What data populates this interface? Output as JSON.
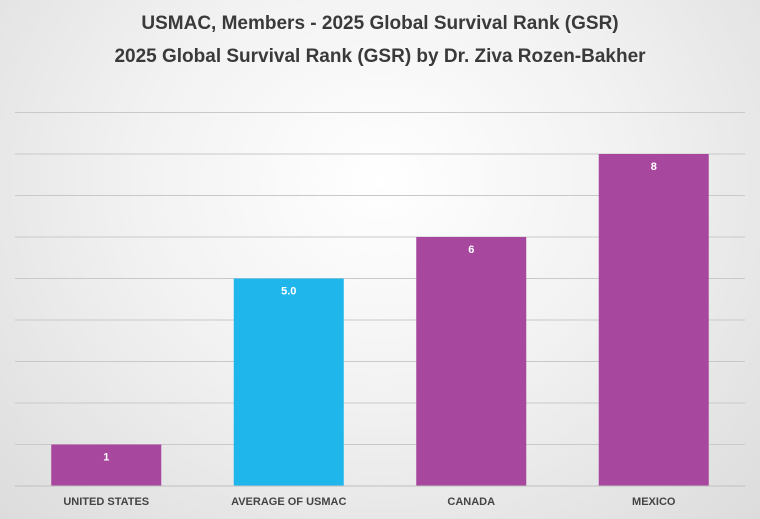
{
  "chart_data": {
    "type": "bar",
    "title": "USMAC, Members - 2025 Global Survival Rank (GSR)",
    "subtitle": "2025 Global Survival Rank (GSR) by Dr. Ziva Rozen-Bakher",
    "categories": [
      "UNITED STATES",
      "AVERAGE OF USMAC",
      "CANADA",
      "MEXICO"
    ],
    "values": [
      1,
      5.0,
      6,
      8
    ],
    "data_labels": [
      "1",
      "5.0",
      "6",
      "8"
    ],
    "bar_colors": [
      "#a7479e",
      "#1fb6ec",
      "#a7479e",
      "#a7479e"
    ],
    "xlabel": "",
    "ylabel": "",
    "ylim": [
      0,
      9
    ],
    "grid": true,
    "legend": "none"
  }
}
